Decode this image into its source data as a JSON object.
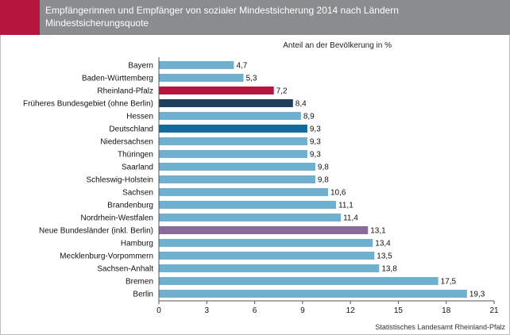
{
  "header": {
    "title_line1": "Empfängerinnen und Empfänger von sozialer Mindestsicherung 2014 nach Ländern",
    "title_line2": "Mindestsicherungsquote"
  },
  "source": "Statistisches Landesamt Rheinland-Pfalz",
  "colors": {
    "default": "#6fb0cf",
    "rheinland_pfalz": "#b4163e",
    "frueheres_bundesgebiet": "#1d3f5c",
    "deutschland": "#0f6d9c",
    "neue_bundeslaender": "#8a6a9b",
    "header_bg": "#8a8c8e",
    "header_accent": "#b4163e"
  },
  "chart_data": {
    "type": "bar",
    "orientation": "horizontal",
    "ylabel": "Anteil an der Bevölkerung in %",
    "xlim": [
      0,
      21
    ],
    "xticks": [
      "0",
      "3",
      "6",
      "9",
      "12",
      "15",
      "18",
      "21"
    ],
    "grid": false,
    "categories": [
      "Bayern",
      "Baden-Württemberg",
      "Rheinland-Pfalz",
      "Früheres Bundesgebiet (ohne Berlin)",
      "Hessen",
      "Deutschland",
      "Niedersachsen",
      "Thüringen",
      "Saarland",
      "Schleswig-Holstein",
      "Sachsen",
      "Brandenburg",
      "Nordrhein-Westfalen",
      "Neue Bundesländer (inkl. Berlin)",
      "Hamburg",
      "Mecklenburg-Vorpommern",
      "Sachsen-Anhalt",
      "Bremen",
      "Berlin"
    ],
    "values": [
      4.7,
      5.3,
      7.2,
      8.4,
      8.9,
      9.3,
      9.3,
      9.3,
      9.8,
      9.8,
      10.6,
      11.1,
      11.4,
      13.1,
      13.4,
      13.5,
      13.8,
      17.5,
      19.3
    ],
    "value_labels": [
      "4,7",
      "5,3",
      "7,2",
      "8,4",
      "8,9",
      "9,3",
      "9,3",
      "9,3",
      "9,8",
      "9,8",
      "10,6",
      "11,1",
      "11,4",
      "13,1",
      "13,4",
      "13,5",
      "13,8",
      "17,5",
      "19,3"
    ],
    "bar_colors": [
      "#6fb0cf",
      "#6fb0cf",
      "#b4163e",
      "#1d3f5c",
      "#6fb0cf",
      "#0f6d9c",
      "#6fb0cf",
      "#6fb0cf",
      "#6fb0cf",
      "#6fb0cf",
      "#6fb0cf",
      "#6fb0cf",
      "#6fb0cf",
      "#8a6a9b",
      "#6fb0cf",
      "#6fb0cf",
      "#6fb0cf",
      "#6fb0cf",
      "#6fb0cf"
    ]
  }
}
